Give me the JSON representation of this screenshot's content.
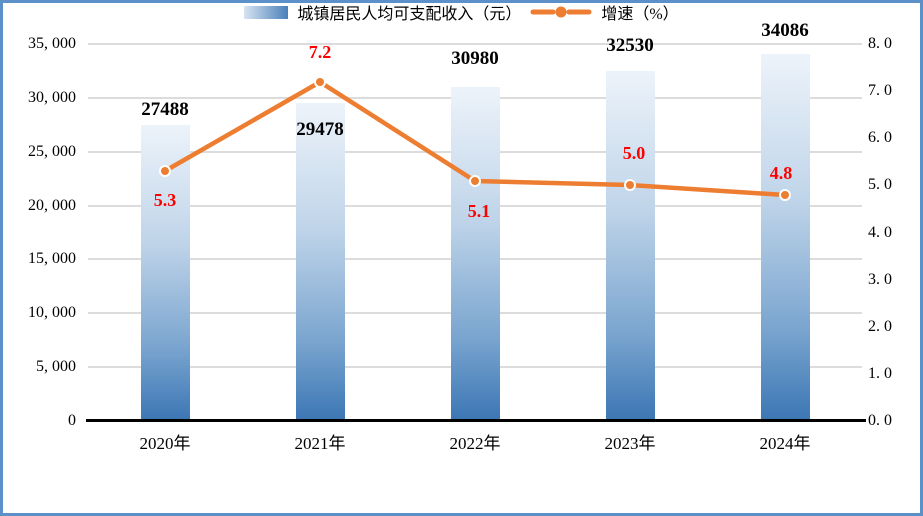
{
  "frame": {
    "border_color": "#5C90C9",
    "background": "#FFFFFF"
  },
  "chart_data": {
    "type": "bar+line combo",
    "title": "",
    "categories": [
      "2020年",
      "2021年",
      "2022年",
      "2023年",
      "2024年"
    ],
    "series": [
      {
        "name": "城镇居民人均可支配收入（元）",
        "type": "bar",
        "axis": "left",
        "values": [
          27488,
          29478,
          30980,
          32530,
          34086
        ],
        "label_color": "#000000",
        "bar_gradient": [
          "#EDF3FA",
          "#BFD4E9",
          "#7AA5CF",
          "#3B76B4"
        ],
        "legend_swatch_gradient": [
          "#D7E3F1",
          "#4A80BA"
        ]
      },
      {
        "name": "增速（%）",
        "type": "line",
        "axis": "right",
        "values": [
          5.3,
          7.2,
          5.1,
          5.0,
          4.8
        ],
        "value_labels": [
          "5.3",
          "7.2",
          "5.1",
          "5.0",
          "4.8"
        ],
        "label_color": "#FF0000",
        "line_color": "#ED7D31",
        "marker": "circle",
        "marker_fill": "#ED7D31",
        "marker_edge": "#FFFFFF"
      }
    ],
    "bar_value_labels": [
      "27488",
      "29478",
      "30980",
      "32530",
      "34086"
    ],
    "left_axis": {
      "min": 0,
      "max": 35000,
      "step": 5000,
      "tick_labels": [
        "0",
        "5, 000",
        "10, 000",
        "15, 000",
        "20, 000",
        "25, 000",
        "30, 000",
        "35, 000"
      ]
    },
    "right_axis": {
      "min": 0,
      "max": 8,
      "step": 1,
      "tick_labels": [
        "0. 0",
        "1. 0",
        "2. 0",
        "3. 0",
        "4. 0",
        "5. 0",
        "6. 0",
        "7. 0",
        "8. 0"
      ]
    },
    "grid": true,
    "gridline_color": "#DCDCDC",
    "axis_line_color": "#000000",
    "legend_position": "bottom",
    "label_offsets": {
      "bar_dy": [
        -15,
        27,
        -28,
        -25,
        -23
      ],
      "line_dy": [
        29,
        -30,
        30,
        -32,
        -22
      ],
      "line_dx": [
        0,
        0,
        4,
        4,
        -4
      ]
    }
  }
}
